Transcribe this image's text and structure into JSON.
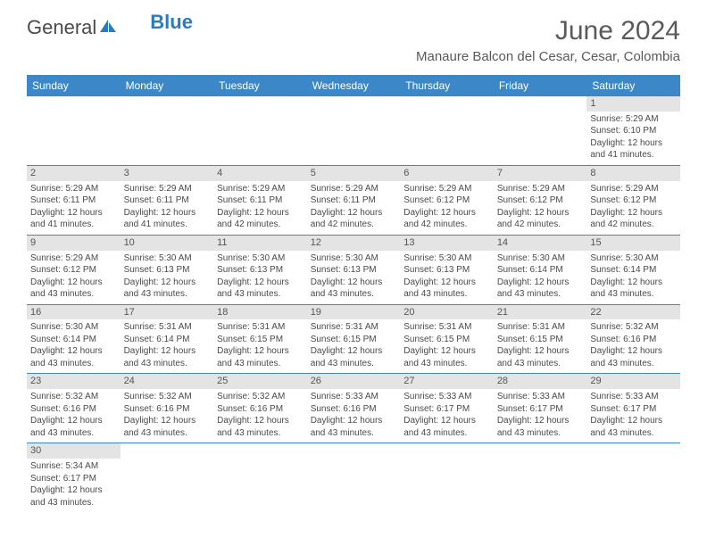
{
  "brand": {
    "general": "General",
    "blue": "Blue"
  },
  "header": {
    "title": "June 2024",
    "location": "Manaure Balcon del Cesar, Cesar, Colombia"
  },
  "colors": {
    "header_bg": "#3b87c8",
    "daybar_bg": "#e4e4e4",
    "text": "#4a4a4a",
    "rule": "#3b87c8"
  },
  "weekdays": [
    "Sunday",
    "Monday",
    "Tuesday",
    "Wednesday",
    "Thursday",
    "Friday",
    "Saturday"
  ],
  "weeks": [
    [
      null,
      null,
      null,
      null,
      null,
      null,
      {
        "n": "1",
        "sr": "Sunrise: 5:29 AM",
        "ss": "Sunset: 6:10 PM",
        "dl1": "Daylight: 12 hours",
        "dl2": "and 41 minutes."
      }
    ],
    [
      {
        "n": "2",
        "sr": "Sunrise: 5:29 AM",
        "ss": "Sunset: 6:11 PM",
        "dl1": "Daylight: 12 hours",
        "dl2": "and 41 minutes."
      },
      {
        "n": "3",
        "sr": "Sunrise: 5:29 AM",
        "ss": "Sunset: 6:11 PM",
        "dl1": "Daylight: 12 hours",
        "dl2": "and 41 minutes."
      },
      {
        "n": "4",
        "sr": "Sunrise: 5:29 AM",
        "ss": "Sunset: 6:11 PM",
        "dl1": "Daylight: 12 hours",
        "dl2": "and 42 minutes."
      },
      {
        "n": "5",
        "sr": "Sunrise: 5:29 AM",
        "ss": "Sunset: 6:11 PM",
        "dl1": "Daylight: 12 hours",
        "dl2": "and 42 minutes."
      },
      {
        "n": "6",
        "sr": "Sunrise: 5:29 AM",
        "ss": "Sunset: 6:12 PM",
        "dl1": "Daylight: 12 hours",
        "dl2": "and 42 minutes."
      },
      {
        "n": "7",
        "sr": "Sunrise: 5:29 AM",
        "ss": "Sunset: 6:12 PM",
        "dl1": "Daylight: 12 hours",
        "dl2": "and 42 minutes."
      },
      {
        "n": "8",
        "sr": "Sunrise: 5:29 AM",
        "ss": "Sunset: 6:12 PM",
        "dl1": "Daylight: 12 hours",
        "dl2": "and 42 minutes."
      }
    ],
    [
      {
        "n": "9",
        "sr": "Sunrise: 5:29 AM",
        "ss": "Sunset: 6:12 PM",
        "dl1": "Daylight: 12 hours",
        "dl2": "and 43 minutes."
      },
      {
        "n": "10",
        "sr": "Sunrise: 5:30 AM",
        "ss": "Sunset: 6:13 PM",
        "dl1": "Daylight: 12 hours",
        "dl2": "and 43 minutes."
      },
      {
        "n": "11",
        "sr": "Sunrise: 5:30 AM",
        "ss": "Sunset: 6:13 PM",
        "dl1": "Daylight: 12 hours",
        "dl2": "and 43 minutes."
      },
      {
        "n": "12",
        "sr": "Sunrise: 5:30 AM",
        "ss": "Sunset: 6:13 PM",
        "dl1": "Daylight: 12 hours",
        "dl2": "and 43 minutes."
      },
      {
        "n": "13",
        "sr": "Sunrise: 5:30 AM",
        "ss": "Sunset: 6:13 PM",
        "dl1": "Daylight: 12 hours",
        "dl2": "and 43 minutes."
      },
      {
        "n": "14",
        "sr": "Sunrise: 5:30 AM",
        "ss": "Sunset: 6:14 PM",
        "dl1": "Daylight: 12 hours",
        "dl2": "and 43 minutes."
      },
      {
        "n": "15",
        "sr": "Sunrise: 5:30 AM",
        "ss": "Sunset: 6:14 PM",
        "dl1": "Daylight: 12 hours",
        "dl2": "and 43 minutes."
      }
    ],
    [
      {
        "n": "16",
        "sr": "Sunrise: 5:30 AM",
        "ss": "Sunset: 6:14 PM",
        "dl1": "Daylight: 12 hours",
        "dl2": "and 43 minutes."
      },
      {
        "n": "17",
        "sr": "Sunrise: 5:31 AM",
        "ss": "Sunset: 6:14 PM",
        "dl1": "Daylight: 12 hours",
        "dl2": "and 43 minutes."
      },
      {
        "n": "18",
        "sr": "Sunrise: 5:31 AM",
        "ss": "Sunset: 6:15 PM",
        "dl1": "Daylight: 12 hours",
        "dl2": "and 43 minutes."
      },
      {
        "n": "19",
        "sr": "Sunrise: 5:31 AM",
        "ss": "Sunset: 6:15 PM",
        "dl1": "Daylight: 12 hours",
        "dl2": "and 43 minutes."
      },
      {
        "n": "20",
        "sr": "Sunrise: 5:31 AM",
        "ss": "Sunset: 6:15 PM",
        "dl1": "Daylight: 12 hours",
        "dl2": "and 43 minutes."
      },
      {
        "n": "21",
        "sr": "Sunrise: 5:31 AM",
        "ss": "Sunset: 6:15 PM",
        "dl1": "Daylight: 12 hours",
        "dl2": "and 43 minutes."
      },
      {
        "n": "22",
        "sr": "Sunrise: 5:32 AM",
        "ss": "Sunset: 6:16 PM",
        "dl1": "Daylight: 12 hours",
        "dl2": "and 43 minutes."
      }
    ],
    [
      {
        "n": "23",
        "sr": "Sunrise: 5:32 AM",
        "ss": "Sunset: 6:16 PM",
        "dl1": "Daylight: 12 hours",
        "dl2": "and 43 minutes."
      },
      {
        "n": "24",
        "sr": "Sunrise: 5:32 AM",
        "ss": "Sunset: 6:16 PM",
        "dl1": "Daylight: 12 hours",
        "dl2": "and 43 minutes."
      },
      {
        "n": "25",
        "sr": "Sunrise: 5:32 AM",
        "ss": "Sunset: 6:16 PM",
        "dl1": "Daylight: 12 hours",
        "dl2": "and 43 minutes."
      },
      {
        "n": "26",
        "sr": "Sunrise: 5:33 AM",
        "ss": "Sunset: 6:16 PM",
        "dl1": "Daylight: 12 hours",
        "dl2": "and 43 minutes."
      },
      {
        "n": "27",
        "sr": "Sunrise: 5:33 AM",
        "ss": "Sunset: 6:17 PM",
        "dl1": "Daylight: 12 hours",
        "dl2": "and 43 minutes."
      },
      {
        "n": "28",
        "sr": "Sunrise: 5:33 AM",
        "ss": "Sunset: 6:17 PM",
        "dl1": "Daylight: 12 hours",
        "dl2": "and 43 minutes."
      },
      {
        "n": "29",
        "sr": "Sunrise: 5:33 AM",
        "ss": "Sunset: 6:17 PM",
        "dl1": "Daylight: 12 hours",
        "dl2": "and 43 minutes."
      }
    ],
    [
      {
        "n": "30",
        "sr": "Sunrise: 5:34 AM",
        "ss": "Sunset: 6:17 PM",
        "dl1": "Daylight: 12 hours",
        "dl2": "and 43 minutes."
      },
      null,
      null,
      null,
      null,
      null,
      null
    ]
  ]
}
